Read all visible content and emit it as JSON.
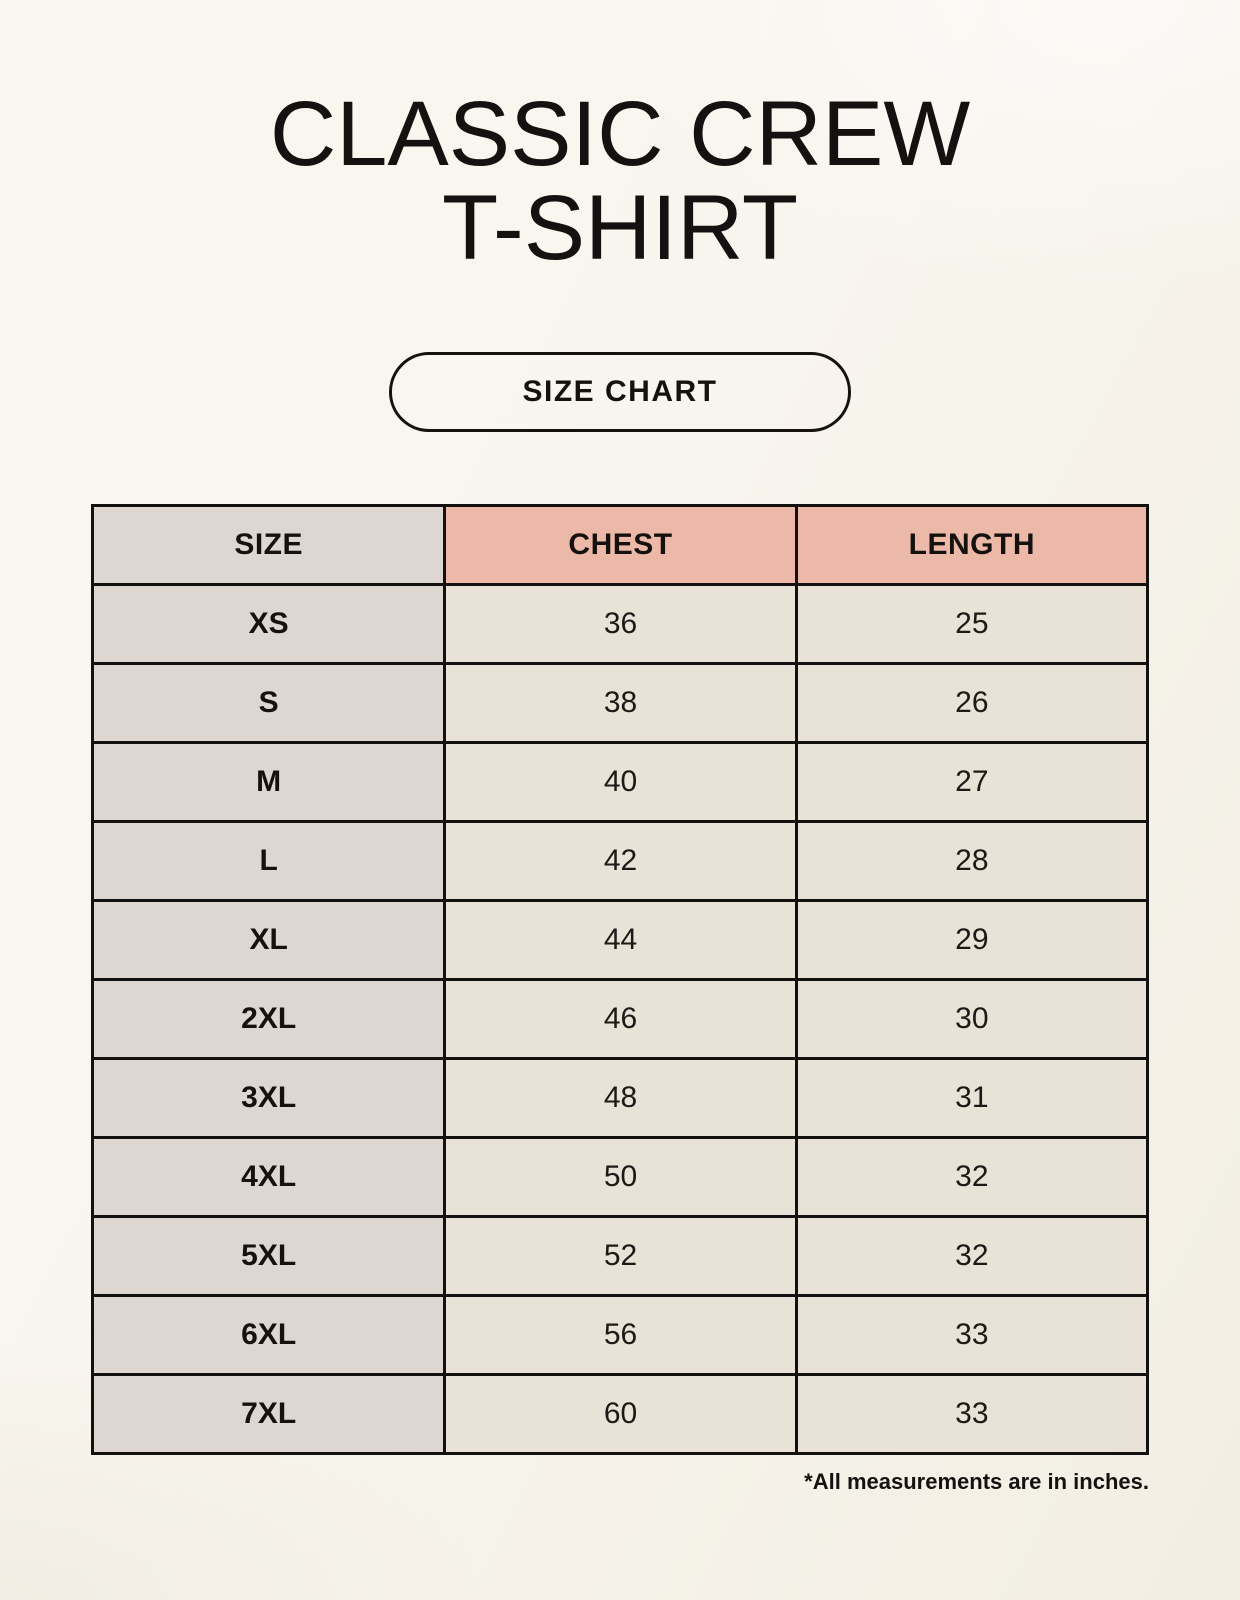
{
  "page": {
    "title_line1": "CLASSIC CREW",
    "title_line2": "T-SHIRT",
    "button_label": "SIZE CHART",
    "footnote": "*All measurements are in inches."
  },
  "colors": {
    "background": "#f8f5ee",
    "table_border": "#121110",
    "header_accent_pink": "#ecb9a8",
    "size_column_grey": "#ded6d0",
    "data_cell_cream": "#e9e2d6",
    "text": "#15110e"
  },
  "chart_data": {
    "type": "table",
    "title": "CLASSIC CREW T-SHIRT",
    "columns": [
      "SIZE",
      "CHEST",
      "LENGTH"
    ],
    "rows": [
      {
        "size": "XS",
        "chest": 36,
        "length": 25
      },
      {
        "size": "S",
        "chest": 38,
        "length": 26
      },
      {
        "size": "M",
        "chest": 40,
        "length": 27
      },
      {
        "size": "L",
        "chest": 42,
        "length": 28
      },
      {
        "size": "XL",
        "chest": 44,
        "length": 29
      },
      {
        "size": "2XL",
        "chest": 46,
        "length": 30
      },
      {
        "size": "3XL",
        "chest": 48,
        "length": 31
      },
      {
        "size": "4XL",
        "chest": 50,
        "length": 32
      },
      {
        "size": "5XL",
        "chest": 52,
        "length": 32
      },
      {
        "size": "6XL",
        "chest": 56,
        "length": 33
      },
      {
        "size": "7XL",
        "chest": 60,
        "length": 33
      }
    ],
    "note": "*All measurements are in inches.",
    "layout": {
      "header_row": true,
      "grid": true,
      "units": "inches"
    }
  }
}
